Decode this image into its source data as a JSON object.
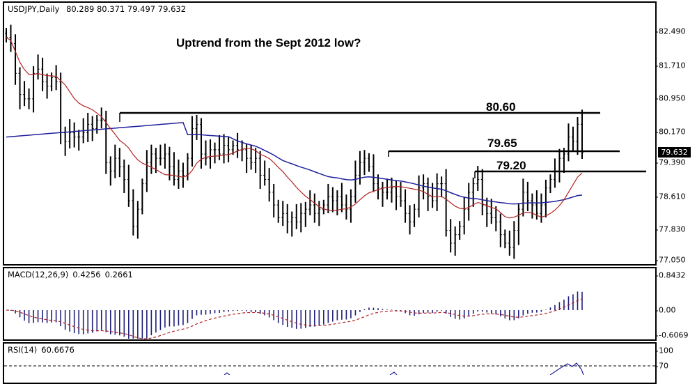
{
  "chart_data": [
    {
      "type": "ohlc",
      "title": "Uptrend from the Sept 2012 low?",
      "symbol": "USDJPY",
      "timeframe": "Daily",
      "ohlc_last": {
        "open": 80.289,
        "high": 80.371,
        "low": 79.497,
        "close": 79.632
      },
      "current_price": 79.632,
      "ylim": [
        77.05,
        82.49
      ],
      "y_ticks": [
        82.49,
        81.71,
        80.95,
        80.17,
        79.39,
        78.61,
        77.83,
        77.05
      ],
      "horizontal_levels": [
        {
          "label": "80.60",
          "value": 80.6
        },
        {
          "label": "79.65",
          "value": 79.65
        },
        {
          "label": "79.20",
          "value": 79.2
        }
      ],
      "moving_averages": [
        {
          "name": "fast MA",
          "color": "#b22222"
        },
        {
          "name": "slow MA",
          "color": "#1f1f9c"
        }
      ],
      "approx_closes": [
        82.35,
        82.2,
        81.5,
        81.0,
        80.9,
        80.9,
        81.5,
        81.6,
        81.3,
        81.2,
        81.4,
        81.3,
        80.1,
        79.9,
        80.1,
        80.0,
        80.0,
        80.1,
        80.3,
        80.2,
        80.4,
        80.4,
        79.4,
        79.2,
        79.5,
        79.3,
        79.0,
        78.5,
        77.9,
        78.3,
        78.9,
        79.4,
        79.6,
        79.5,
        79.5,
        79.6,
        79.3,
        79.0,
        79.2,
        79.1,
        79.5,
        80.2,
        80.3,
        79.6,
        79.5,
        79.7,
        79.7,
        79.6,
        79.8,
        79.7,
        79.8,
        79.7,
        79.7,
        79.5,
        79.4,
        79.5,
        79.1,
        79.0,
        78.7,
        78.4,
        78.1,
        78.2,
        78.0,
        78.1,
        78.0,
        78.2,
        78.3,
        78.4,
        78.2,
        78.3,
        78.4,
        78.6,
        78.5,
        78.6,
        78.4,
        78.3,
        78.6,
        79.1,
        79.4,
        79.5,
        79.3,
        78.9,
        78.8,
        78.7,
        78.7,
        78.8,
        78.6,
        78.5,
        78.2,
        78.0,
        78.3,
        78.8,
        78.9,
        78.6,
        78.5,
        78.9,
        78.9,
        77.8,
        77.5,
        77.7,
        77.9,
        78.3,
        78.7,
        78.9,
        79.0,
        78.4,
        78.2,
        78.1,
        78.0,
        77.7,
        77.5,
        77.4,
        77.8,
        78.3,
        78.7,
        78.5,
        78.4,
        78.2,
        78.4,
        78.8,
        79.0,
        79.2,
        79.5,
        79.6,
        80.0,
        79.9,
        80.3,
        79.63
      ]
    },
    {
      "type": "bar",
      "title": "MACD(12,26,9)",
      "values_label": [
        "0.4256",
        "0.2661"
      ],
      "macd": 0.4256,
      "signal": 0.2661,
      "ylim": [
        -0.6069,
        0.8432
      ],
      "y_ticks": [
        0.8432,
        0.0,
        -0.6069
      ],
      "histogram_color": "#1f1f7a",
      "signal_color": "#b22222"
    },
    {
      "type": "line",
      "title": "RSI(14)",
      "value": 60.6676,
      "y_ticks": [
        100,
        70
      ],
      "line_color": "#1f1f9c",
      "level": 70
    }
  ],
  "main": {
    "symbol_label": "USDJPY,Daily",
    "ohlc_text": "80.289 80.371 79.497 79.632",
    "headline": "Uptrend from the Sept 2012 low?",
    "level_1": "80.60",
    "level_2": "79.65",
    "level_3": "79.20",
    "price_tag": "79.632",
    "ticks": [
      "82.490",
      "81.710",
      "80.950",
      "80.170",
      "79.390",
      "78.610",
      "77.830",
      "77.050"
    ]
  },
  "macd": {
    "label": "MACD(12,26,9)",
    "value_1": "0.4256",
    "value_2": "0.2661",
    "ticks": [
      "0.8432",
      "0.00",
      "-0.6069"
    ]
  },
  "rsi": {
    "label": "RSI(14)",
    "value": "60.6676",
    "ticks": [
      "100",
      "70"
    ]
  }
}
